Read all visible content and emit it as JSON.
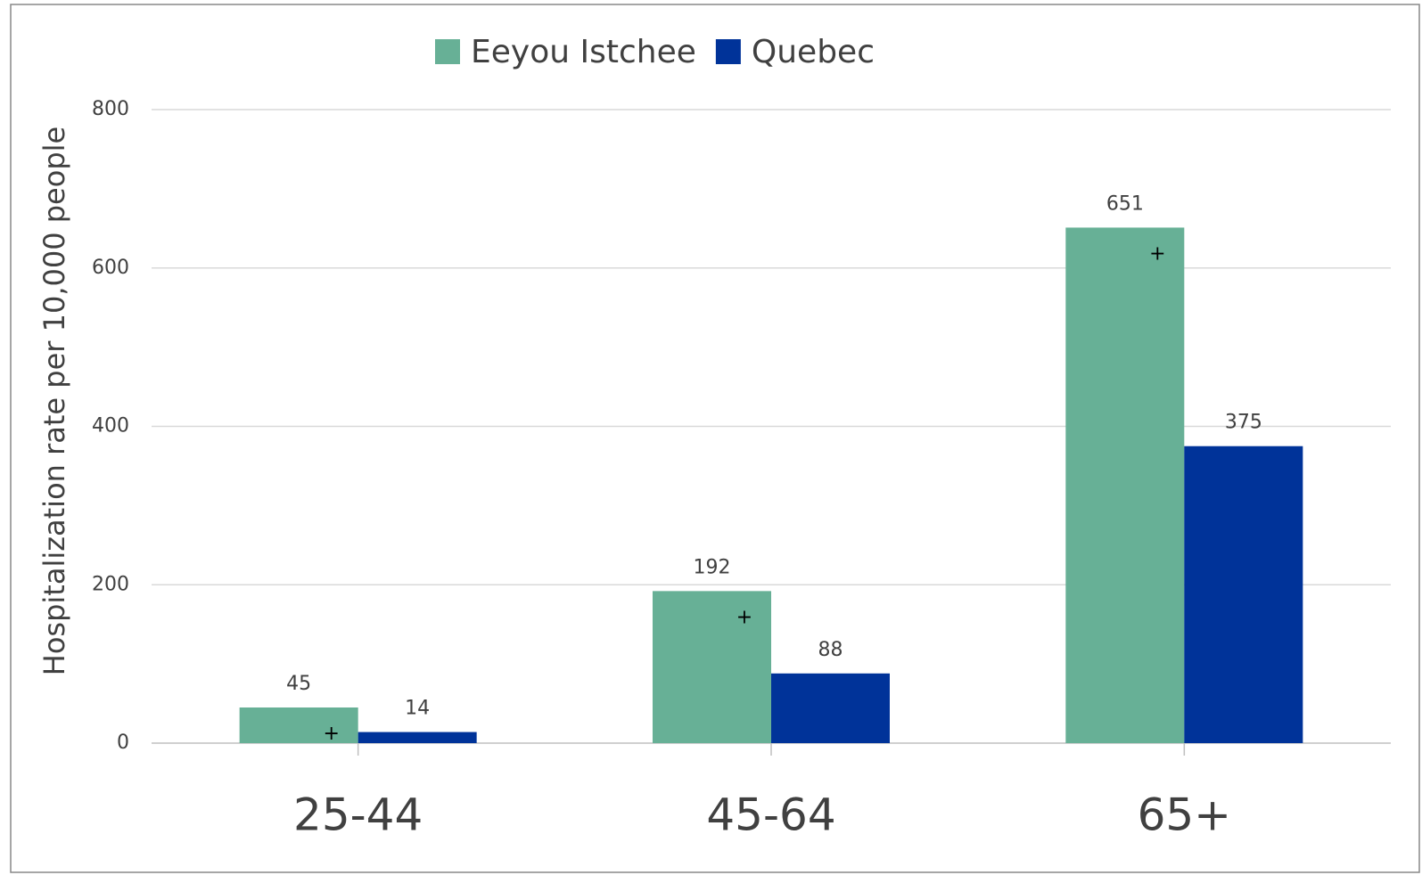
{
  "chart_data": {
    "type": "bar",
    "y_label": "Hospitalization rate per 10,000 people",
    "categories": [
      "25-44",
      "45-64",
      "65+"
    ],
    "series": [
      {
        "name": "Eeyou Istchee",
        "color": "#67b096",
        "values": [
          45,
          192,
          651
        ]
      },
      {
        "name": "Quebec",
        "color": "#003399",
        "values": [
          14,
          88,
          375
        ]
      }
    ],
    "significance": [
      "+",
      "+",
      "+"
    ],
    "ylim": [
      0,
      800
    ],
    "yticks": [
      0,
      200,
      400,
      600,
      800
    ],
    "grid": true,
    "legend": "top"
  }
}
